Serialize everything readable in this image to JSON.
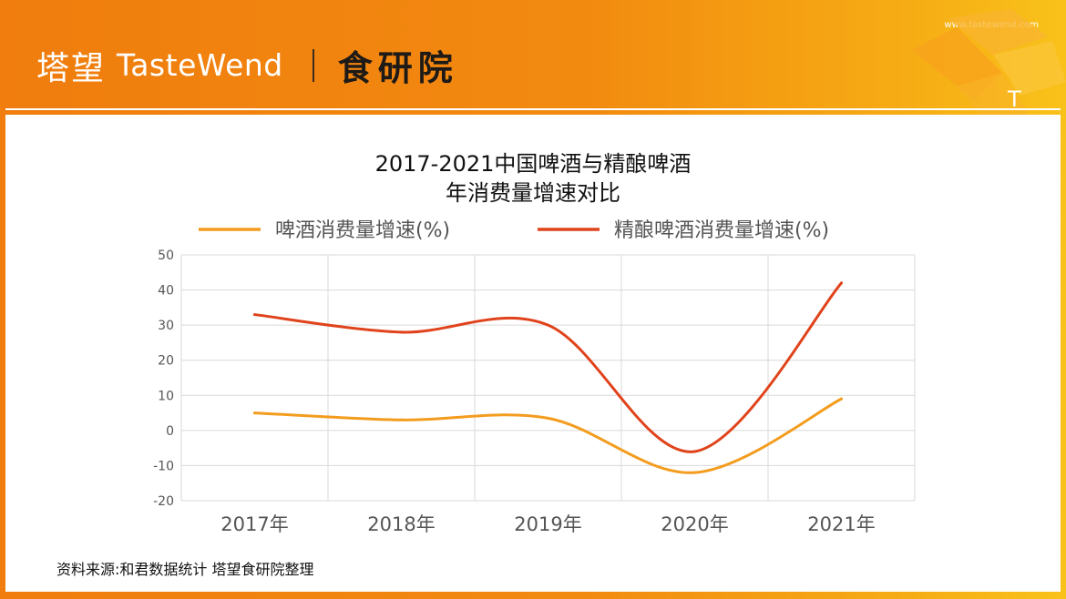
{
  "header": {
    "brand_cn": "塔望",
    "brand_en": "TasteWend",
    "institute": "食研院",
    "url": "www.tastewend.com",
    "corner_letter": "T"
  },
  "source_note": "资料来源:和君数据统计 塔望食研院整理",
  "colors": {
    "banner": "#f28a10",
    "beer": "#f39c1e",
    "craft": "#e0431b",
    "grid": "#d9d9d9"
  },
  "chart_data": {
    "type": "line",
    "title": "2017-2021中国啤酒与精酿啤酒",
    "subtitle": "年消费量增速对比",
    "categories": [
      "2017年",
      "2018年",
      "2019年",
      "2020年",
      "2021年"
    ],
    "series": [
      {
        "name": "啤酒消费量增速(%)",
        "values": [
          5,
          3,
          3.5,
          -12,
          9
        ]
      },
      {
        "name": "精酿啤酒消费量增速(%)",
        "values": [
          33,
          28,
          30,
          -6,
          42
        ]
      }
    ],
    "ylim": [
      -20,
      50
    ],
    "yticks": [
      50,
      40,
      30,
      20,
      10,
      0,
      -10,
      -20
    ],
    "grid": true,
    "legend": "top",
    "smooth": true
  }
}
